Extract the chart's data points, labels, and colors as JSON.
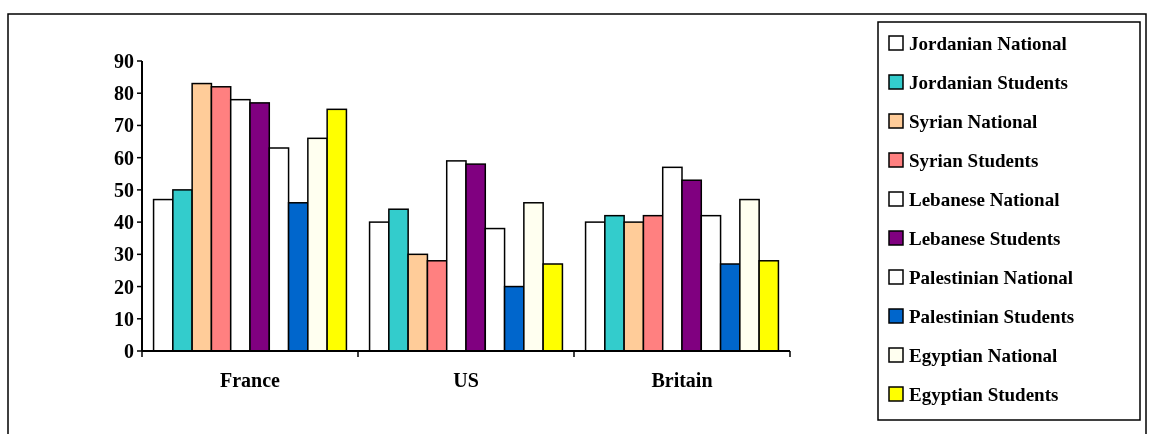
{
  "chart_data": {
    "type": "bar",
    "categories": [
      "France",
      "US",
      "Britain"
    ],
    "series": [
      {
        "name": "Jordanian National",
        "color": "#ffffff",
        "values": [
          47,
          40,
          40
        ]
      },
      {
        "name": "Jordanian Students",
        "color": "#33cccc",
        "values": [
          50,
          44,
          42
        ]
      },
      {
        "name": "Syrian National",
        "color": "#ffcc99",
        "values": [
          83,
          30,
          40
        ]
      },
      {
        "name": "Syrian Students",
        "color": "#ff8080",
        "values": [
          82,
          28,
          42
        ]
      },
      {
        "name": "Lebanese National",
        "color": "#ffffff",
        "values": [
          78,
          59,
          57
        ]
      },
      {
        "name": "Lebanese Students",
        "color": "#800080",
        "values": [
          77,
          58,
          53
        ]
      },
      {
        "name": "Palestinian National",
        "color": "#ffffff",
        "values": [
          63,
          38,
          42
        ]
      },
      {
        "name": "Palestinian Students",
        "color": "#0066cc",
        "values": [
          46,
          20,
          27
        ]
      },
      {
        "name": "Egyptian National",
        "color": "#fffff0",
        "values": [
          66,
          46,
          47
        ]
      },
      {
        "name": "Egyptian Students",
        "color": "#ffff00",
        "values": [
          75,
          27,
          28
        ]
      }
    ],
    "ylim": [
      0,
      90
    ],
    "yticks": [
      0,
      10,
      20,
      30,
      40,
      50,
      60,
      70,
      80,
      90
    ],
    "grid": false,
    "legend": "right"
  }
}
